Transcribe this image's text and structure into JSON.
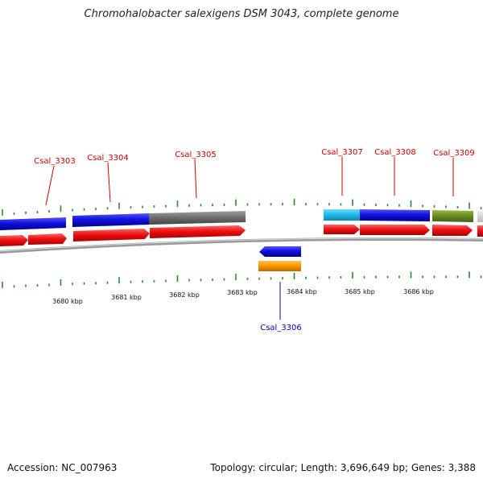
{
  "title": "Chromohalobacter salexigens DSM 3043, complete genome",
  "footer": {
    "accession": "Accession: NC_007963",
    "summary": "Topology: circular; Length: 3,696,649 bp; Genes: 3,388"
  },
  "axis": {
    "tick_labels": [
      "3680 kbp",
      "3681 kbp",
      "3682 kbp",
      "3683 kbp",
      "3684 kbp",
      "3685 kbp",
      "3686 kbp"
    ]
  },
  "gene_labels": [
    {
      "name": "Csal_3303",
      "color": "#cc0000"
    },
    {
      "name": "Csal_3304",
      "color": "#cc0000"
    },
    {
      "name": "Csal_3305",
      "color": "#cc0000"
    },
    {
      "name": "Csal_3306",
      "color": "#0000aa"
    },
    {
      "name": "Csal_3307",
      "color": "#cc0000"
    },
    {
      "name": "Csal_3308",
      "color": "#cc0000"
    },
    {
      "name": "Csal_3309",
      "color": "#cc0000"
    }
  ],
  "colors": {
    "cds": "#ee1111",
    "blue": "#1111dd",
    "gray": "#707070",
    "cyan": "#22bbe8",
    "olive": "#6b8e23",
    "orange": "#ff9900",
    "tick": "#2a8a2a",
    "backbone": "#888888"
  }
}
